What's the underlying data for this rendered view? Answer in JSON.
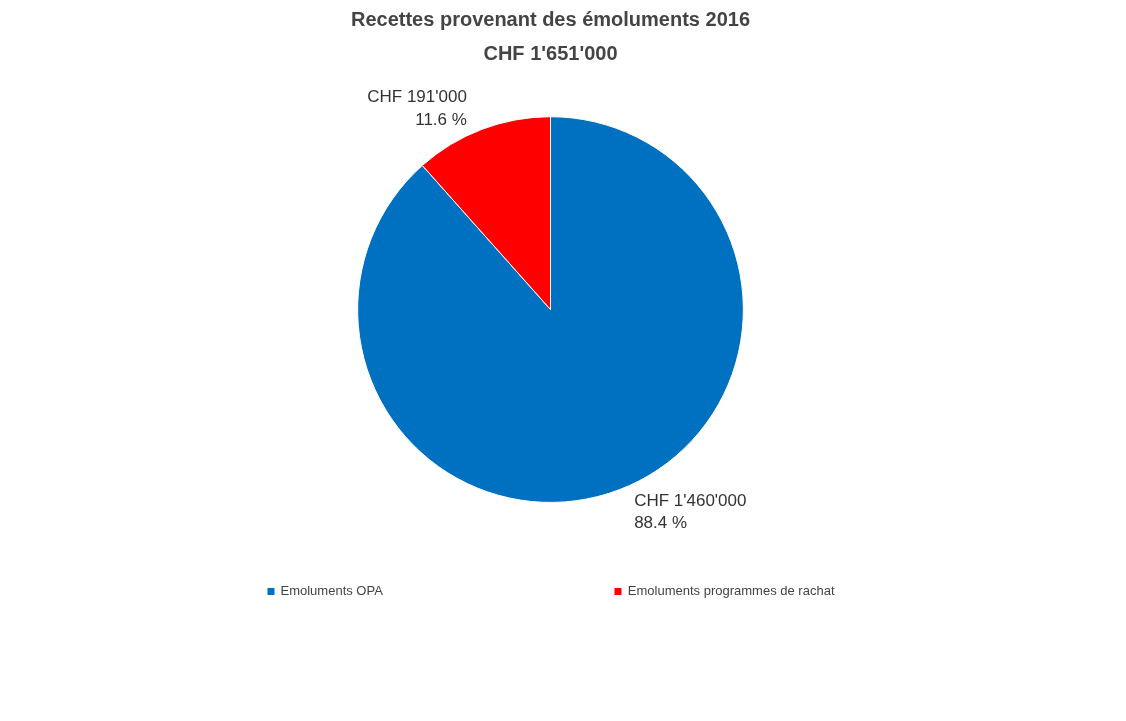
{
  "chart_data": {
    "type": "pie",
    "title": "Recettes provenant des émoluments 2016",
    "subtitle": "CHF 1'651'000",
    "categories": [
      "Emoluments OPA",
      "Emoluments programmes de rachat"
    ],
    "values": [
      1460000,
      191000
    ],
    "colors": [
      "#0070c0",
      "#ff0000"
    ],
    "value_labels": [
      "CHF 1'460'000\n88.4 %",
      "CHF 191'000\n11.6 %"
    ],
    "legend": "bottom"
  }
}
